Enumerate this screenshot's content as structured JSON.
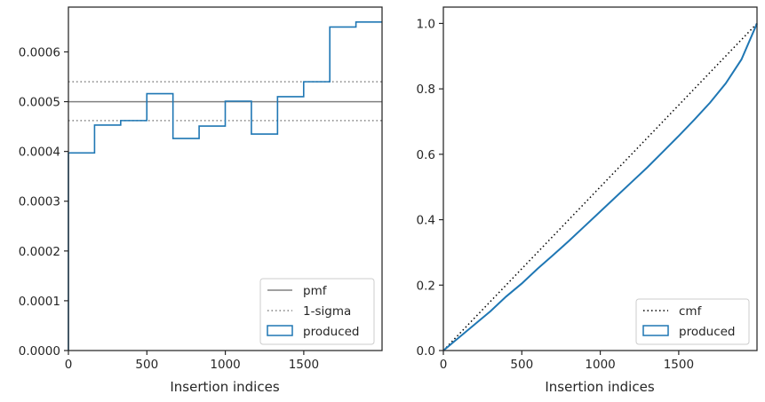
{
  "chart_data": [
    {
      "type": "line",
      "xlabel": "Insertion indices",
      "ylabel": "",
      "xlim": [
        0,
        1999
      ],
      "ylim": [
        0,
        0.00069
      ],
      "xticks": [
        0,
        500,
        1000,
        1500
      ],
      "yticks": [
        0,
        0.0001,
        0.0002,
        0.0003,
        0.0004,
        0.0005,
        0.0006
      ],
      "xtick_labels": [
        "0",
        "500",
        "1000",
        "1500"
      ],
      "ytick_labels": [
        "0.0000",
        "0.0001",
        "0.0002",
        "0.0003",
        "0.0004",
        "0.0005",
        "0.0006"
      ],
      "grid": false,
      "legend_position": "lower-right",
      "series": [
        {
          "name": "pmf",
          "kind": "hline",
          "y": 0.0005,
          "color": "#808080",
          "style": "solid"
        },
        {
          "name": "1-sigma",
          "kind": "hlines",
          "y": [
            0.000462,
            0.00054
          ],
          "color": "#808080",
          "style": "dotted"
        },
        {
          "name": "produced",
          "kind": "step",
          "color": "#1f77b4",
          "bin_edges": [
            0,
            166.6,
            333.2,
            499.8,
            666.4,
            833,
            999.6,
            1166.2,
            1332.8,
            1499.4,
            1666,
            1832.6,
            1999
          ],
          "values": [
            0.000397,
            0.000453,
            0.000462,
            0.000516,
            0.000426,
            0.000451,
            0.000501,
            0.000435,
            0.00051,
            0.00054,
            0.00065,
            0.00066
          ]
        }
      ]
    },
    {
      "type": "line",
      "xlabel": "Insertion indices",
      "ylabel": "",
      "xlim": [
        0,
        1999
      ],
      "ylim": [
        0,
        1.05
      ],
      "xticks": [
        0,
        500,
        1000,
        1500
      ],
      "yticks": [
        0,
        0.2,
        0.4,
        0.6,
        0.8,
        1.0
      ],
      "xtick_labels": [
        "0",
        "500",
        "1000",
        "1500"
      ],
      "ytick_labels": [
        "0.0",
        "0.2",
        "0.4",
        "0.6",
        "0.8",
        "1.0"
      ],
      "grid": false,
      "legend_position": "lower-right",
      "series": [
        {
          "name": "cmf",
          "kind": "line",
          "color": "#000000",
          "style": "dotted",
          "x": [
            0,
            1999
          ],
          "y": [
            0,
            1.0
          ]
        },
        {
          "name": "produced",
          "kind": "line",
          "color": "#1f77b4",
          "x": [
            0,
            100,
            200,
            300,
            400,
            500,
            600,
            700,
            800,
            900,
            1000,
            1100,
            1200,
            1300,
            1400,
            1500,
            1600,
            1700,
            1800,
            1900,
            1999
          ],
          "y": [
            0,
            0.04,
            0.08,
            0.12,
            0.165,
            0.205,
            0.25,
            0.292,
            0.335,
            0.38,
            0.425,
            0.47,
            0.515,
            0.56,
            0.608,
            0.656,
            0.706,
            0.758,
            0.817,
            0.89,
            1.0
          ]
        }
      ]
    }
  ]
}
